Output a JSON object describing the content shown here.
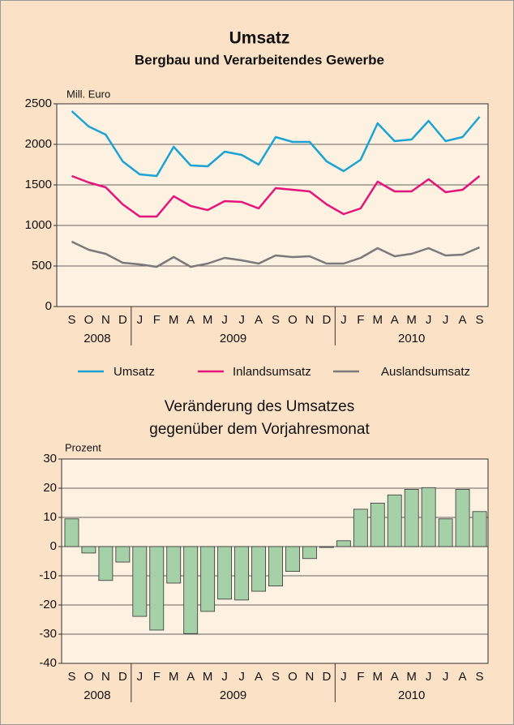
{
  "chart_data": [
    {
      "type": "line",
      "title": "Umsatz",
      "subtitle": "Bergbau und Verarbeitendes Gewerbe",
      "y_label": "Mill. Euro",
      "categories": [
        "S",
        "O",
        "N",
        "D",
        "J",
        "F",
        "M",
        "A",
        "M",
        "J",
        "J",
        "A",
        "S",
        "O",
        "N",
        "D",
        "J",
        "F",
        "M",
        "A",
        "M",
        "J",
        "J",
        "A",
        "S"
      ],
      "years": [
        "2008",
        "2009",
        "2010"
      ],
      "ylim": [
        0,
        2500
      ],
      "yticks": [
        0,
        500,
        1000,
        1500,
        2000,
        2500
      ],
      "grid": true,
      "series": [
        {
          "name": "Umsatz",
          "color": "#1ba3d4",
          "values": [
            2410,
            2220,
            2120,
            1790,
            1630,
            1610,
            1970,
            1740,
            1730,
            1910,
            1870,
            1750,
            2090,
            2030,
            2030,
            1790,
            1670,
            1810,
            2260,
            2040,
            2060,
            2290,
            2040,
            2090,
            2340
          ]
        },
        {
          "name": "Inlandsumsatz",
          "color": "#e5147a",
          "values": [
            1610,
            1530,
            1470,
            1260,
            1110,
            1110,
            1360,
            1240,
            1190,
            1300,
            1290,
            1210,
            1460,
            1440,
            1420,
            1260,
            1140,
            1210,
            1540,
            1420,
            1420,
            1570,
            1410,
            1440,
            1610
          ]
        },
        {
          "name": "Auslandsumsatz",
          "color": "#7a7a7a",
          "values": [
            800,
            700,
            650,
            540,
            520,
            490,
            610,
            490,
            530,
            600,
            570,
            530,
            630,
            610,
            620,
            530,
            530,
            600,
            720,
            620,
            650,
            720,
            630,
            640,
            730
          ]
        }
      ]
    },
    {
      "type": "bar",
      "title": "Veränderung des Umsatzes",
      "subtitle": "gegenüber dem Vorjahresmonat",
      "y_label": "Prozent",
      "categories": [
        "S",
        "O",
        "N",
        "D",
        "J",
        "F",
        "M",
        "A",
        "M",
        "J",
        "J",
        "A",
        "S",
        "O",
        "N",
        "D",
        "J",
        "F",
        "M",
        "A",
        "M",
        "J",
        "J",
        "A",
        "S"
      ],
      "years": [
        "2008",
        "2009",
        "2010"
      ],
      "ylim": [
        -40,
        30
      ],
      "yticks": [
        -40,
        -30,
        -20,
        -10,
        0,
        10,
        20,
        30
      ],
      "grid": true,
      "color": "#a6d0a8",
      "values": [
        9.5,
        -2.2,
        -11.6,
        -5.3,
        -23.9,
        -28.6,
        -12.5,
        -29.8,
        -22.2,
        -18,
        -18.3,
        -15.3,
        -13.5,
        -8.5,
        -4.1,
        -0.3,
        2,
        12.8,
        14.9,
        17.7,
        19.6,
        20.2,
        9.5,
        19.6,
        12
      ]
    }
  ]
}
